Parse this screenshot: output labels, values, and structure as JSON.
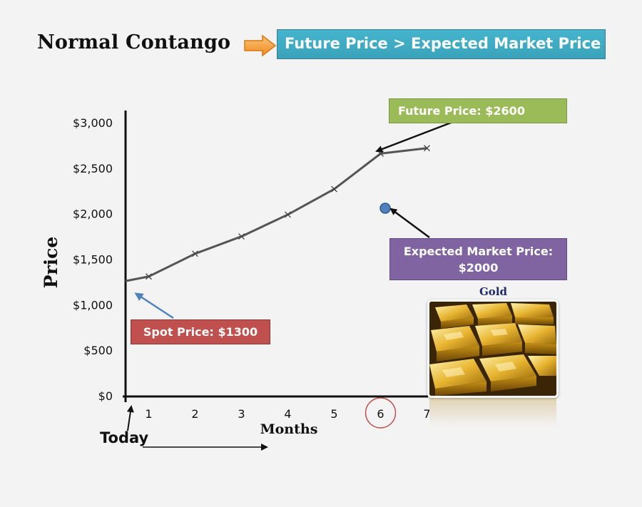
{
  "header": {
    "title": "Normal Contango",
    "banner": "Future Price > Expected Market Price"
  },
  "callouts": {
    "future_price": "Future Price: $2600",
    "expected_line1": "Expected Market Price:",
    "expected_line2": "$2000",
    "spot_price": "Spot Price: $1300",
    "today": "Today",
    "gold_label": "Gold"
  },
  "colors": {
    "banner": "#45b4cc",
    "future_box": "#9bbb59",
    "expected_box": "#8064a2",
    "spot_box": "#c0504d",
    "series_line": "#555555",
    "expected_point": "#4f81bd",
    "highlight_circle": "#c0504d",
    "spot_arrow": "#4f81bd"
  },
  "chart_data": {
    "type": "line",
    "xlabel": "Months",
    "ylabel": "Price",
    "x_ticks": [
      "1",
      "2",
      "3",
      "4",
      "5",
      "6",
      "7"
    ],
    "y_ticks": [
      "$0",
      "$500",
      "$1,000",
      "$1,500",
      "$2,000",
      "$2,500",
      "$3,000"
    ],
    "xlim": [
      0,
      7
    ],
    "ylim": [
      0,
      3000
    ],
    "grid": false,
    "series": [
      {
        "x": [
          0,
          0.5,
          1.5,
          2.5,
          3.5,
          4.5,
          5.5,
          6.5
        ],
        "values": [
          1260,
          1310,
          1560,
          1750,
          1990,
          2270,
          2660,
          2720
        ]
      }
    ],
    "points": [
      {
        "x": 5.6,
        "y": 2060
      }
    ],
    "highlight_tick": "6"
  }
}
